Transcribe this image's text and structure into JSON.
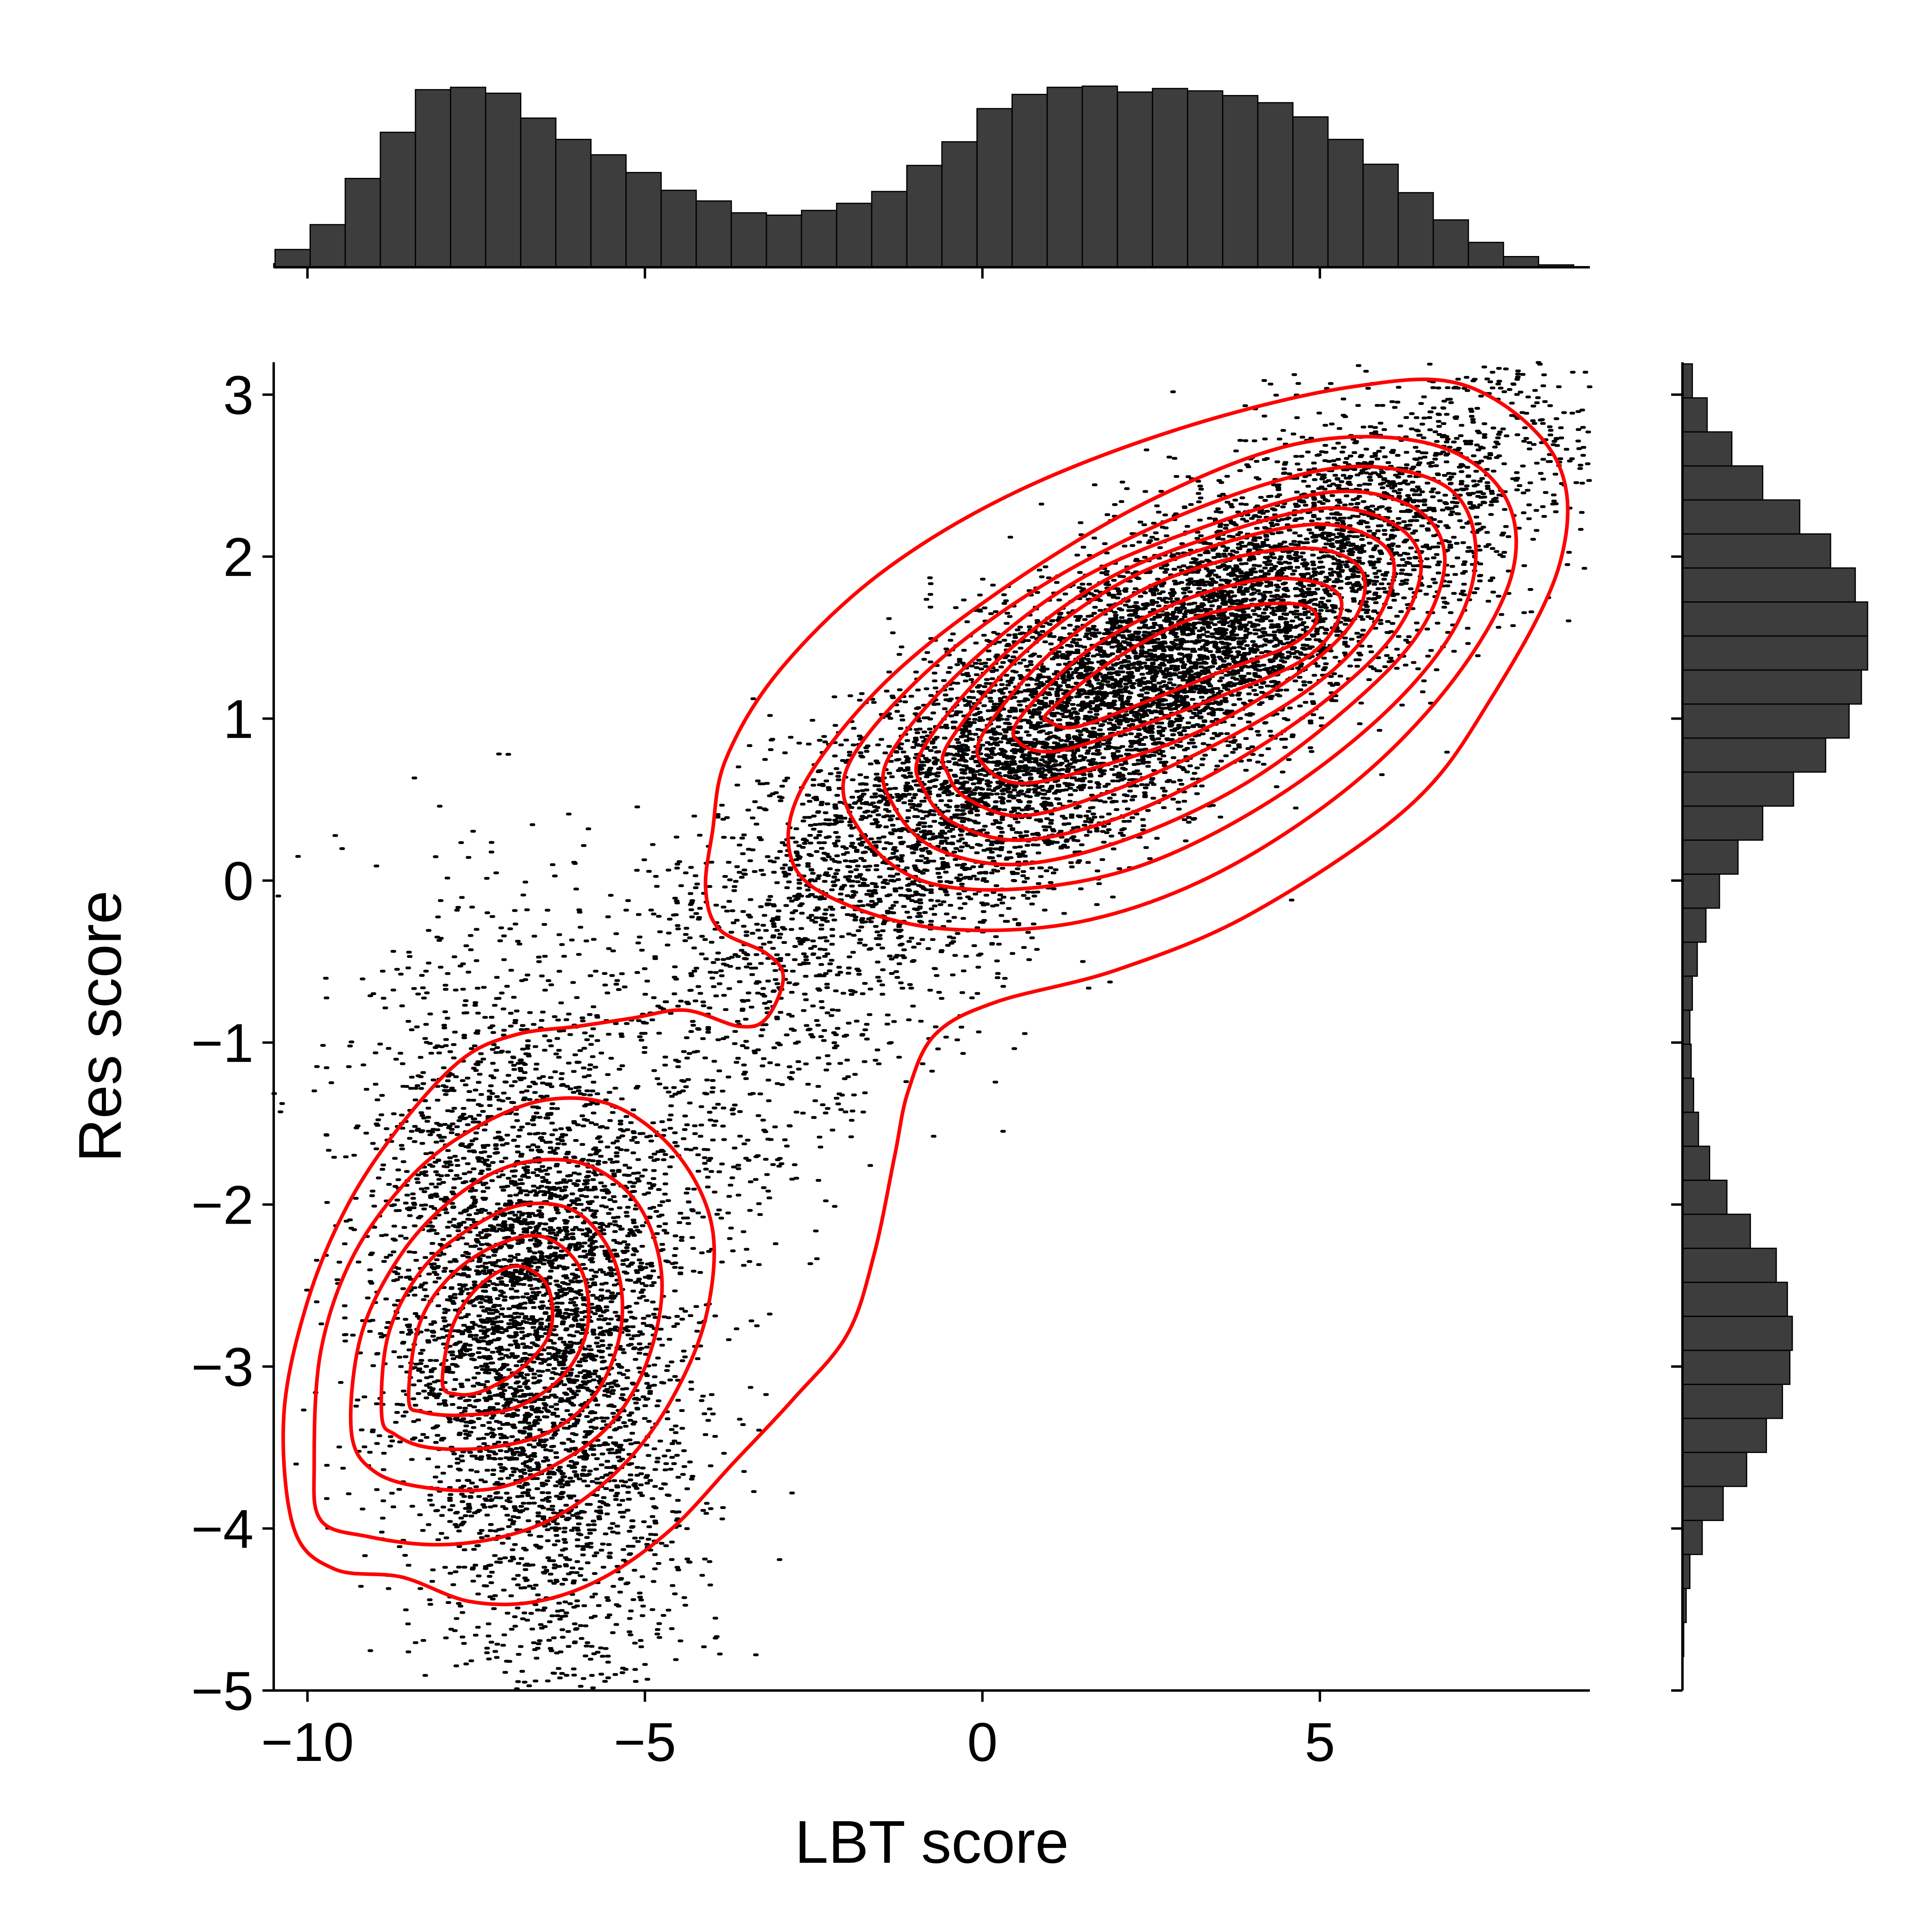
{
  "chart_data": {
    "type": "scatter",
    "title": "",
    "xlabel": "LBT score",
    "ylabel": "Res score",
    "xlim": [
      -10.5,
      9
    ],
    "ylim": [
      -5,
      3.2
    ],
    "xticks": [
      -10,
      -5,
      0,
      5
    ],
    "xtick_labels": [
      "−10",
      "−5",
      "0",
      "5"
    ],
    "yticks": [
      -5,
      -4,
      -3,
      -2,
      -1,
      0,
      1,
      2,
      3
    ],
    "ytick_labels": [
      "−5",
      "−4",
      "−3",
      "−2",
      "−1",
      "0",
      "1",
      "2",
      "3"
    ],
    "grid": false,
    "point_color": "#000000",
    "contour_color": "#ff0000",
    "hist_color": "#3d3d3d",
    "clusters": [
      {
        "center": [
          2.3,
          1.25
        ],
        "sd_major": 3.1,
        "sd_minor": 0.42,
        "angle_deg": 14,
        "weight": 0.64
      },
      {
        "center": [
          -6.7,
          -2.75
        ],
        "sd_major": 0.95,
        "sd_minor": 1.2,
        "angle_deg": 55,
        "weight": 0.36
      }
    ],
    "contours": [
      {
        "level": 1,
        "points": [
          [
            -10.2,
            -4.0
          ],
          [
            -10.35,
            -3.3
          ],
          [
            -10.0,
            -2.6
          ],
          [
            -9.4,
            -2.0
          ],
          [
            -8.6,
            -1.5
          ],
          [
            -7.7,
            -1.1
          ],
          [
            -6.9,
            -0.95
          ],
          [
            -6.0,
            -0.9
          ],
          [
            -5.2,
            -0.85
          ],
          [
            -4.4,
            -0.8
          ],
          [
            -3.6,
            -0.9
          ],
          [
            -3.2,
            -0.85
          ],
          [
            -2.95,
            -0.6
          ],
          [
            -3.2,
            -0.45
          ],
          [
            -3.9,
            -0.3
          ],
          [
            -4.1,
            -0.05
          ],
          [
            -4.0,
            0.3
          ],
          [
            -3.8,
            0.75
          ],
          [
            -3.0,
            1.3
          ],
          [
            -1.5,
            1.9
          ],
          [
            0.5,
            2.4
          ],
          [
            3.0,
            2.8
          ],
          [
            5.5,
            3.05
          ],
          [
            7.2,
            3.05
          ],
          [
            8.5,
            2.6
          ],
          [
            8.55,
            1.95
          ],
          [
            7.5,
            1.1
          ],
          [
            6.3,
            0.45
          ],
          [
            4.0,
            -0.2
          ],
          [
            2.0,
            -0.55
          ],
          [
            0.2,
            -0.75
          ],
          [
            -0.7,
            -0.95
          ],
          [
            -1.1,
            -1.3
          ],
          [
            -1.3,
            -1.7
          ],
          [
            -1.6,
            -2.3
          ],
          [
            -2.0,
            -2.8
          ],
          [
            -2.8,
            -3.2
          ],
          [
            -3.7,
            -3.6
          ],
          [
            -4.6,
            -4.0
          ],
          [
            -5.6,
            -4.3
          ],
          [
            -6.6,
            -4.45
          ],
          [
            -7.6,
            -4.45
          ],
          [
            -8.6,
            -4.3
          ],
          [
            -9.6,
            -4.25
          ]
        ]
      },
      {
        "level": 2,
        "points": [
          [
            -2.7,
            0.55
          ],
          [
            -1.5,
            1.2
          ],
          [
            0.3,
            1.8
          ],
          [
            2.5,
            2.35
          ],
          [
            4.7,
            2.7
          ],
          [
            6.6,
            2.7
          ],
          [
            7.7,
            2.4
          ],
          [
            7.85,
            1.9
          ],
          [
            7.0,
            1.25
          ],
          [
            5.5,
            0.6
          ],
          [
            3.5,
            0.05
          ],
          [
            1.5,
            -0.25
          ],
          [
            -0.5,
            -0.3
          ],
          [
            -2.0,
            -0.15
          ],
          [
            -2.8,
            0.1
          ]
        ]
      },
      {
        "level": 3,
        "points": [
          [
            -2.0,
            0.7
          ],
          [
            -0.8,
            1.3
          ],
          [
            1.0,
            1.85
          ],
          [
            3.2,
            2.3
          ],
          [
            5.3,
            2.55
          ],
          [
            6.8,
            2.45
          ],
          [
            7.3,
            2.1
          ],
          [
            7.05,
            1.6
          ],
          [
            6.0,
            1.05
          ],
          [
            4.3,
            0.5
          ],
          [
            2.4,
            0.1
          ],
          [
            0.6,
            -0.05
          ],
          [
            -0.9,
            0.0
          ],
          [
            -1.8,
            0.3
          ]
        ]
      },
      {
        "level": 4,
        "points": [
          [
            -1.4,
            0.75
          ],
          [
            -0.3,
            1.3
          ],
          [
            1.4,
            1.85
          ],
          [
            3.4,
            2.2
          ],
          [
            5.2,
            2.4
          ],
          [
            6.4,
            2.3
          ],
          [
            6.85,
            2.0
          ],
          [
            6.5,
            1.55
          ],
          [
            5.5,
            1.1
          ],
          [
            3.9,
            0.6
          ],
          [
            2.1,
            0.25
          ],
          [
            0.5,
            0.1
          ],
          [
            -0.7,
            0.2
          ],
          [
            -1.3,
            0.45
          ]
        ]
      },
      {
        "level": 5,
        "points": [
          [
            -0.9,
            0.8
          ],
          [
            0.2,
            1.35
          ],
          [
            1.8,
            1.85
          ],
          [
            3.6,
            2.15
          ],
          [
            5.1,
            2.3
          ],
          [
            6.1,
            2.2
          ],
          [
            6.5,
            1.95
          ],
          [
            6.15,
            1.55
          ],
          [
            5.2,
            1.15
          ],
          [
            3.8,
            0.75
          ],
          [
            2.1,
            0.4
          ],
          [
            0.6,
            0.25
          ],
          [
            -0.4,
            0.35
          ],
          [
            -0.85,
            0.55
          ]
        ]
      },
      {
        "level": 6,
        "points": [
          [
            -0.5,
            0.85
          ],
          [
            0.6,
            1.4
          ],
          [
            2.1,
            1.85
          ],
          [
            3.7,
            2.1
          ],
          [
            5.0,
            2.2
          ],
          [
            5.85,
            2.1
          ],
          [
            6.1,
            1.9
          ],
          [
            5.75,
            1.55
          ],
          [
            4.9,
            1.2
          ],
          [
            3.5,
            0.85
          ],
          [
            1.9,
            0.55
          ],
          [
            0.6,
            0.4
          ],
          [
            -0.2,
            0.5
          ],
          [
            -0.5,
            0.65
          ]
        ]
      },
      {
        "level": 7,
        "points": [
          [
            0.0,
            0.9
          ],
          [
            1.0,
            1.4
          ],
          [
            2.4,
            1.8
          ],
          [
            3.8,
            2.0
          ],
          [
            4.9,
            2.05
          ],
          [
            5.55,
            1.95
          ],
          [
            5.65,
            1.75
          ],
          [
            5.3,
            1.5
          ],
          [
            4.4,
            1.2
          ],
          [
            3.1,
            0.9
          ],
          [
            1.7,
            0.7
          ],
          [
            0.6,
            0.6
          ],
          [
            0.05,
            0.7
          ]
        ]
      },
      {
        "level": 8,
        "points": [
          [
            0.55,
            1.0
          ],
          [
            1.5,
            1.4
          ],
          [
            2.8,
            1.7
          ],
          [
            4.0,
            1.85
          ],
          [
            4.85,
            1.85
          ],
          [
            5.3,
            1.75
          ],
          [
            5.2,
            1.55
          ],
          [
            4.7,
            1.35
          ],
          [
            3.6,
            1.15
          ],
          [
            2.3,
            0.95
          ],
          [
            1.1,
            0.8
          ],
          [
            0.55,
            0.85
          ]
        ]
      },
      {
        "level": 9,
        "points": [
          [
            1.0,
            1.05
          ],
          [
            1.9,
            1.35
          ],
          [
            3.0,
            1.6
          ],
          [
            4.0,
            1.7
          ],
          [
            4.75,
            1.7
          ],
          [
            4.95,
            1.6
          ],
          [
            4.55,
            1.45
          ],
          [
            3.6,
            1.3
          ],
          [
            2.4,
            1.1
          ],
          [
            1.4,
            0.95
          ],
          [
            1.0,
            0.98
          ]
        ]
      },
      {
        "level": 10,
        "points": [
          [
            -9.9,
            -3.6
          ],
          [
            -9.8,
            -2.9
          ],
          [
            -9.3,
            -2.3
          ],
          [
            -8.4,
            -1.8
          ],
          [
            -7.4,
            -1.5
          ],
          [
            -6.4,
            -1.35
          ],
          [
            -5.4,
            -1.4
          ],
          [
            -4.5,
            -1.7
          ],
          [
            -4.0,
            -2.15
          ],
          [
            -4.1,
            -2.7
          ],
          [
            -4.6,
            -3.2
          ],
          [
            -5.3,
            -3.6
          ],
          [
            -6.2,
            -3.9
          ],
          [
            -7.1,
            -4.05
          ],
          [
            -8.1,
            -4.1
          ],
          [
            -9.1,
            -4.05
          ],
          [
            -9.8,
            -3.95
          ]
        ]
      },
      {
        "level": 11,
        "points": [
          [
            -9.35,
            -3.4
          ],
          [
            -9.2,
            -2.8
          ],
          [
            -8.6,
            -2.3
          ],
          [
            -7.8,
            -1.95
          ],
          [
            -6.9,
            -1.75
          ],
          [
            -5.9,
            -1.75
          ],
          [
            -5.1,
            -2.0
          ],
          [
            -4.75,
            -2.45
          ],
          [
            -4.95,
            -2.95
          ],
          [
            -5.5,
            -3.35
          ],
          [
            -6.3,
            -3.6
          ],
          [
            -7.2,
            -3.75
          ],
          [
            -8.2,
            -3.75
          ],
          [
            -9.0,
            -3.65
          ]
        ]
      },
      {
        "level": 12,
        "points": [
          [
            -8.9,
            -3.3
          ],
          [
            -8.8,
            -2.8
          ],
          [
            -8.3,
            -2.4
          ],
          [
            -7.6,
            -2.15
          ],
          [
            -6.8,
            -2.0
          ],
          [
            -6.0,
            -2.05
          ],
          [
            -5.45,
            -2.35
          ],
          [
            -5.35,
            -2.75
          ],
          [
            -5.7,
            -3.15
          ],
          [
            -6.4,
            -3.4
          ],
          [
            -7.3,
            -3.5
          ],
          [
            -8.2,
            -3.5
          ],
          [
            -8.7,
            -3.42
          ]
        ]
      },
      {
        "level": 13,
        "points": [
          [
            -8.5,
            -3.2
          ],
          [
            -8.35,
            -2.75
          ],
          [
            -7.9,
            -2.45
          ],
          [
            -7.2,
            -2.25
          ],
          [
            -6.5,
            -2.2
          ],
          [
            -5.95,
            -2.4
          ],
          [
            -5.85,
            -2.75
          ],
          [
            -6.2,
            -3.05
          ],
          [
            -6.9,
            -3.25
          ],
          [
            -7.7,
            -3.3
          ],
          [
            -8.3,
            -3.28
          ]
        ]
      },
      {
        "level": 14,
        "points": [
          [
            -8.0,
            -3.1
          ],
          [
            -7.85,
            -2.75
          ],
          [
            -7.45,
            -2.5
          ],
          [
            -6.9,
            -2.38
          ],
          [
            -6.45,
            -2.5
          ],
          [
            -6.4,
            -2.78
          ],
          [
            -6.8,
            -3.0
          ],
          [
            -7.4,
            -3.15
          ],
          [
            -7.8,
            -3.17
          ]
        ]
      }
    ],
    "hist_x": {
      "bin_edges": [
        -11.0,
        -10.48,
        -9.96,
        -9.44,
        -8.92,
        -8.4,
        -7.88,
        -7.36,
        -6.84,
        -6.32,
        -5.8,
        -5.28,
        -4.76,
        -4.24,
        -3.72,
        -3.2,
        -2.68,
        -2.16,
        -1.64,
        -1.12,
        -0.6,
        -0.08,
        0.44,
        0.96,
        1.48,
        2.0,
        2.52,
        3.04,
        3.56,
        4.08,
        4.6,
        5.12,
        5.64,
        6.16,
        6.68,
        7.2,
        7.72,
        8.24,
        8.76,
        9.28
      ],
      "counts": [
        3,
        15,
        36,
        75,
        114,
        150,
        152,
        147,
        126,
        108,
        95,
        80,
        65,
        56,
        46,
        44,
        48,
        54,
        64,
        86,
        106,
        134,
        146,
        152,
        153,
        148,
        151,
        149,
        145,
        139,
        127,
        108,
        87,
        63,
        40,
        21,
        9,
        2,
        0
      ]
    },
    "hist_y": {
      "bin_edges": [
        -5.0,
        -4.79,
        -4.58,
        -4.37,
        -4.16,
        -3.95,
        -3.74,
        -3.53,
        -3.32,
        -3.11,
        -2.9,
        -2.69,
        -2.48,
        -2.27,
        -2.06,
        -1.85,
        -1.64,
        -1.43,
        -1.22,
        -1.01,
        -0.8,
        -0.59,
        -0.38,
        -0.17,
        0.04,
        0.25,
        0.46,
        0.67,
        0.88,
        1.09,
        1.3,
        1.51,
        1.72,
        1.93,
        2.14,
        2.35,
        2.56,
        2.77,
        2.98,
        3.19
      ],
      "counts": [
        0,
        1,
        3,
        6,
        16,
        33,
        52,
        68,
        81,
        87,
        89,
        85,
        76,
        55,
        36,
        22,
        13,
        9,
        7,
        6,
        8,
        12,
        19,
        30,
        45,
        65,
        90,
        116,
        135,
        145,
        150,
        150,
        140,
        120,
        95,
        65,
        40,
        20,
        8
      ]
    }
  }
}
